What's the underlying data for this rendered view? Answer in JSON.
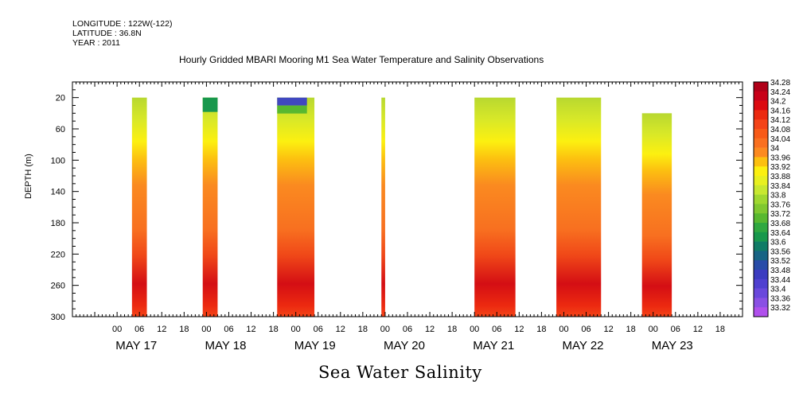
{
  "header": {
    "longitude": "LONGITUDE : 122W(-122)",
    "latitude": "LATITUDE : 36.8N",
    "year": "YEAR : 2011",
    "title": "Hourly Gridded MBARI Mooring M1 Sea Water Temperature and Salinity Observations"
  },
  "footer": {
    "variable_title": "Sea Water Salinity"
  },
  "chart_data": {
    "type": "heatmap",
    "title": "Hourly Gridded MBARI Mooring M1 Sea Water Temperature and Salinity Observations",
    "subtitle": "Sea Water Salinity",
    "xlabel": "",
    "ylabel": "DEPTH (m)",
    "xlim_hours": [
      -12,
      168
    ],
    "ylim": [
      300,
      0
    ],
    "y_ticks": [
      20,
      60,
      100,
      140,
      180,
      220,
      260,
      300
    ],
    "x_hour_ticks": [
      "00",
      "06",
      "12",
      "18",
      "00",
      "06",
      "12",
      "18",
      "00",
      "06",
      "12",
      "18",
      "00",
      "06",
      "12",
      "18",
      "00",
      "06",
      "12",
      "18",
      "00",
      "06",
      "12",
      "18",
      "00",
      "06",
      "12",
      "18"
    ],
    "x_day_labels": [
      "MAY 17",
      "MAY 18",
      "MAY 19",
      "MAY 20",
      "MAY 21",
      "MAY 22",
      "MAY 23"
    ],
    "colorbar": {
      "levels": [
        "34.28",
        "34.24",
        "34.2",
        "34.16",
        "34.12",
        "34.08",
        "34.04",
        "34",
        "33.96",
        "33.92",
        "33.88",
        "33.84",
        "33.8",
        "33.76",
        "33.72",
        "33.68",
        "33.64",
        "33.6",
        "33.56",
        "33.52",
        "33.48",
        "33.44",
        "33.4",
        "33.36",
        "33.32"
      ],
      "colors": [
        "#b00018",
        "#c80018",
        "#dc0a10",
        "#ec2a10",
        "#f44418",
        "#f85a18",
        "#fa7020",
        "#fc8a20",
        "#fcc010",
        "#fcf010",
        "#e8f020",
        "#c8e830",
        "#a0d830",
        "#80c830",
        "#58b830",
        "#30a840",
        "#18984c",
        "#107c66",
        "#186484",
        "#284ca8",
        "#3c3cc0",
        "#5040d0",
        "#6a48dc",
        "#8a50e4",
        "#b050ec"
      ]
    },
    "data_blocks": [
      {
        "start_hour": 4,
        "end_hour": 8,
        "top_depth": 20,
        "note": "shallow 33.7-33.85, mid 34.0-34.1, deep 34.16-34.2"
      },
      {
        "start_hour": 23,
        "end_hour": 27,
        "top_depth": 20,
        "note": "surface 33.6"
      },
      {
        "start_hour": 43,
        "end_hour": 53,
        "top_depth": 20,
        "note": "surface 33.48"
      },
      {
        "start_hour": 71,
        "end_hour": 72,
        "top_depth": 20,
        "note": ""
      },
      {
        "start_hour": 96,
        "end_hour": 107,
        "top_depth": 20,
        "note": ""
      },
      {
        "start_hour": 118,
        "end_hour": 130,
        "top_depth": 20,
        "note": ""
      },
      {
        "start_hour": 141,
        "end_hour": 149,
        "top_depth": 40,
        "note": ""
      }
    ]
  }
}
